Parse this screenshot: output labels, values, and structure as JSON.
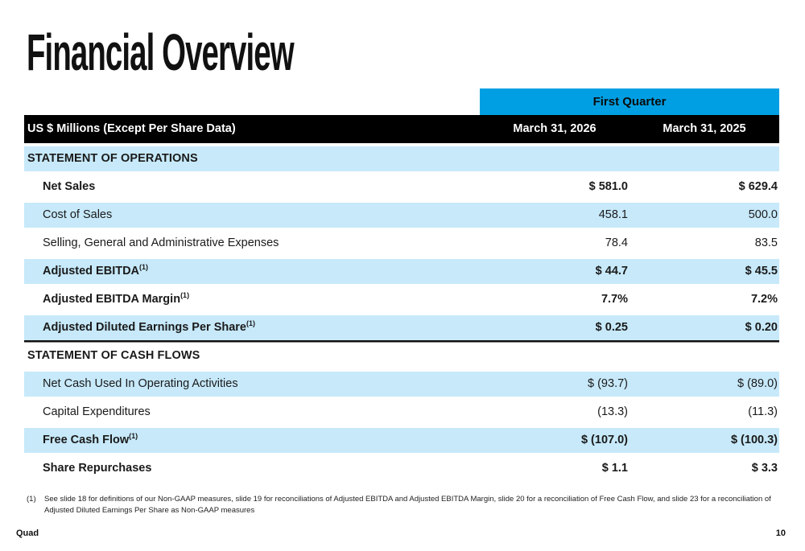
{
  "page": {
    "title": "Financial Overview",
    "footer_left": "Quad",
    "page_number": "10"
  },
  "table": {
    "quarter_header": "First Quarter",
    "unit_label": "US $ Millions (Except Per Share Data)",
    "columns": [
      "March 31, 2026",
      "March 31, 2025"
    ],
    "sections": [
      {
        "heading": "STATEMENT OF OPERATIONS",
        "rows": [
          {
            "label": "Net Sales",
            "sup": "",
            "values": [
              "$ 581.0",
              "$ 629.4"
            ],
            "bold": true,
            "divider_after": false
          },
          {
            "label": "Cost of Sales",
            "sup": "",
            "values": [
              "458.1",
              "500.0"
            ],
            "bold": false,
            "divider_after": false
          },
          {
            "label": "Selling, General and Administrative Expenses",
            "sup": "",
            "values": [
              "78.4",
              "83.5"
            ],
            "bold": false,
            "divider_after": false
          },
          {
            "label": "Adjusted EBITDA",
            "sup": "(1)",
            "values": [
              "$ 44.7",
              "$ 45.5"
            ],
            "bold": true,
            "divider_after": false
          },
          {
            "label": "Adjusted EBITDA Margin",
            "sup": "(1)",
            "values": [
              "7.7%",
              "7.2%"
            ],
            "bold": true,
            "divider_after": false
          },
          {
            "label": "Adjusted Diluted Earnings Per Share",
            "sup": "(1)",
            "values": [
              "$ 0.25",
              "$ 0.20"
            ],
            "bold": true,
            "divider_after": true
          }
        ]
      },
      {
        "heading": "STATEMENT OF CASH FLOWS",
        "rows": [
          {
            "label": "Net Cash Used In Operating Activities",
            "sup": "",
            "values": [
              "$ (93.7)",
              "$ (89.0)"
            ],
            "bold": false,
            "divider_after": false
          },
          {
            "label": "Capital Expenditures",
            "sup": "",
            "values": [
              "(13.3)",
              "(11.3)"
            ],
            "bold": false,
            "divider_after": false
          },
          {
            "label": "Free Cash Flow",
            "sup": "(1)",
            "values": [
              "$ (107.0)",
              "$ (100.3)"
            ],
            "bold": true,
            "divider_after": false
          },
          {
            "label": "Share Repurchases",
            "sup": "",
            "values": [
              "$ 1.1",
              "$ 3.3"
            ],
            "bold": true,
            "divider_after": false
          }
        ]
      }
    ]
  },
  "footnote": {
    "marker": "(1)",
    "text": "See slide 18 for definitions of our Non-GAAP measures, slide 19 for reconciliations of Adjusted EBITDA and Adjusted EBITDA Margin, slide 20 for a reconciliation of Free Cash Flow, and slide 23 for a reconciliation of Adjusted Diluted Earnings Per Share as Non-GAAP measures"
  },
  "colors": {
    "accent_cyan": "#009fe3",
    "row_light_blue": "#c7e9fa",
    "header_black": "#000000"
  }
}
